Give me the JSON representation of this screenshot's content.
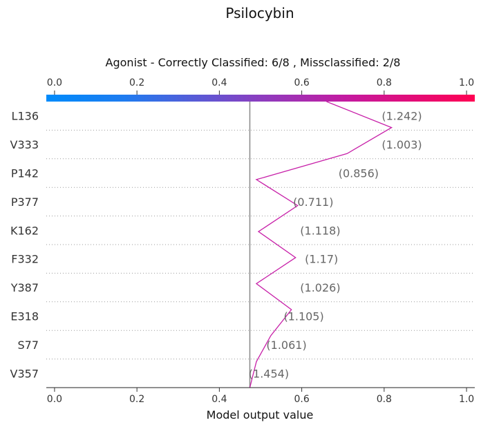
{
  "chart_data": {
    "type": "line",
    "chart_kind": "shap-decision-plot",
    "title": "Psilocybin",
    "subtitle": "Agonist - Correctly Classified: 6/8 , Missclassified: 2/8",
    "xlabel": "Model output value",
    "xlim": [
      -0.02,
      1.02
    ],
    "x_ticks": [
      "0.0",
      "0.2",
      "0.4",
      "0.6",
      "0.8",
      "1.0"
    ],
    "x_tick_values": [
      0.0,
      0.2,
      0.4,
      0.6,
      0.8,
      1.0
    ],
    "base_value": 0.474,
    "colorbar": {
      "from": "#008bfb",
      "mid": "#8c3dbf",
      "to": "#ff0052"
    },
    "line_color": "#c71fa8",
    "features": [
      {
        "name": "L136",
        "value_label": "(1.242)"
      },
      {
        "name": "V333",
        "value_label": "(1.003)"
      },
      {
        "name": "P142",
        "value_label": "(0.856)"
      },
      {
        "name": "P377",
        "value_label": "(0.711)"
      },
      {
        "name": "K162",
        "value_label": "(1.118)"
      },
      {
        "name": "F332",
        "value_label": "(1.17)"
      },
      {
        "name": "Y387",
        "value_label": "(1.026)"
      },
      {
        "name": "E318",
        "value_label": "(1.105)"
      },
      {
        "name": "S77",
        "value_label": "(1.061)"
      },
      {
        "name": "V357",
        "value_label": "(1.454)"
      }
    ],
    "path_values": [
      0.474,
      0.49,
      0.525,
      0.575,
      0.49,
      0.585,
      0.495,
      0.59,
      0.49,
      0.71,
      0.818,
      0.66
    ],
    "label_x_values": [
      0.52,
      0.563,
      0.605,
      0.645,
      0.648,
      0.645,
      0.628,
      0.738,
      0.843,
      0.843
    ]
  }
}
